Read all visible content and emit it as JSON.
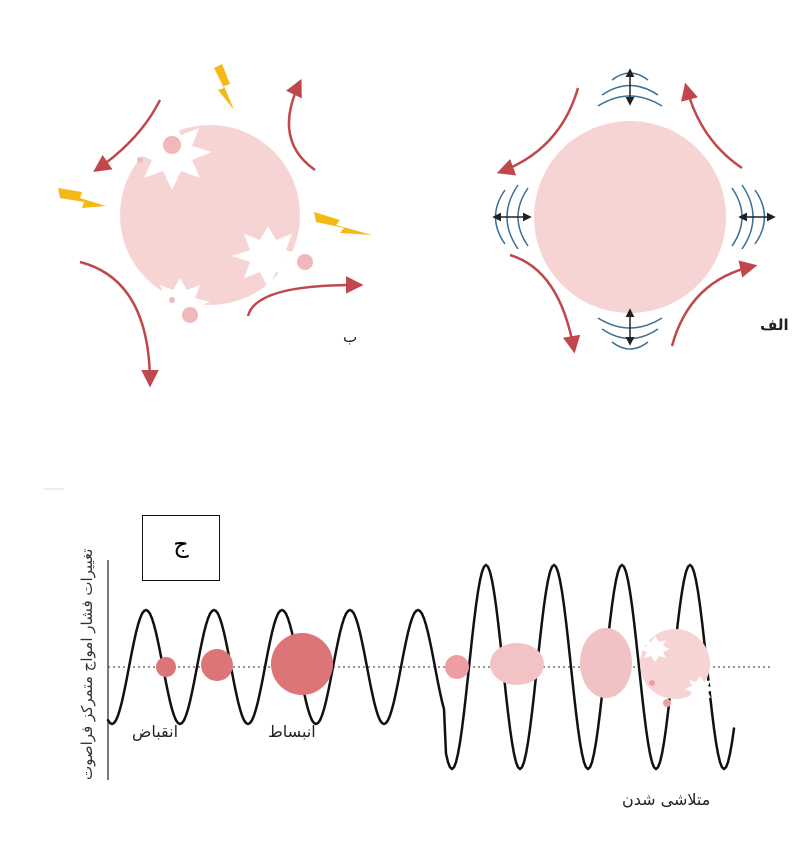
{
  "labels": {
    "panel_a": "الف",
    "panel_b": "ب",
    "panel_c": "ج",
    "contraction": "انقباض",
    "expansion": "انبساط",
    "collapse": "متلاشی شدن",
    "y_axis": "تغییرات فشار امواج متمرکز فراصوت"
  },
  "colors": {
    "bubble_fill": "#f6d4d4",
    "bubble_dark": "#dc7478",
    "arrow": "#c0484c",
    "wave_arc": "#3a6f96",
    "lightning": "#f5b915",
    "wave_line": "#111111"
  },
  "icons": [
    "lightning-icon",
    "double-arrow-icon",
    "curved-arrow-icon"
  ]
}
